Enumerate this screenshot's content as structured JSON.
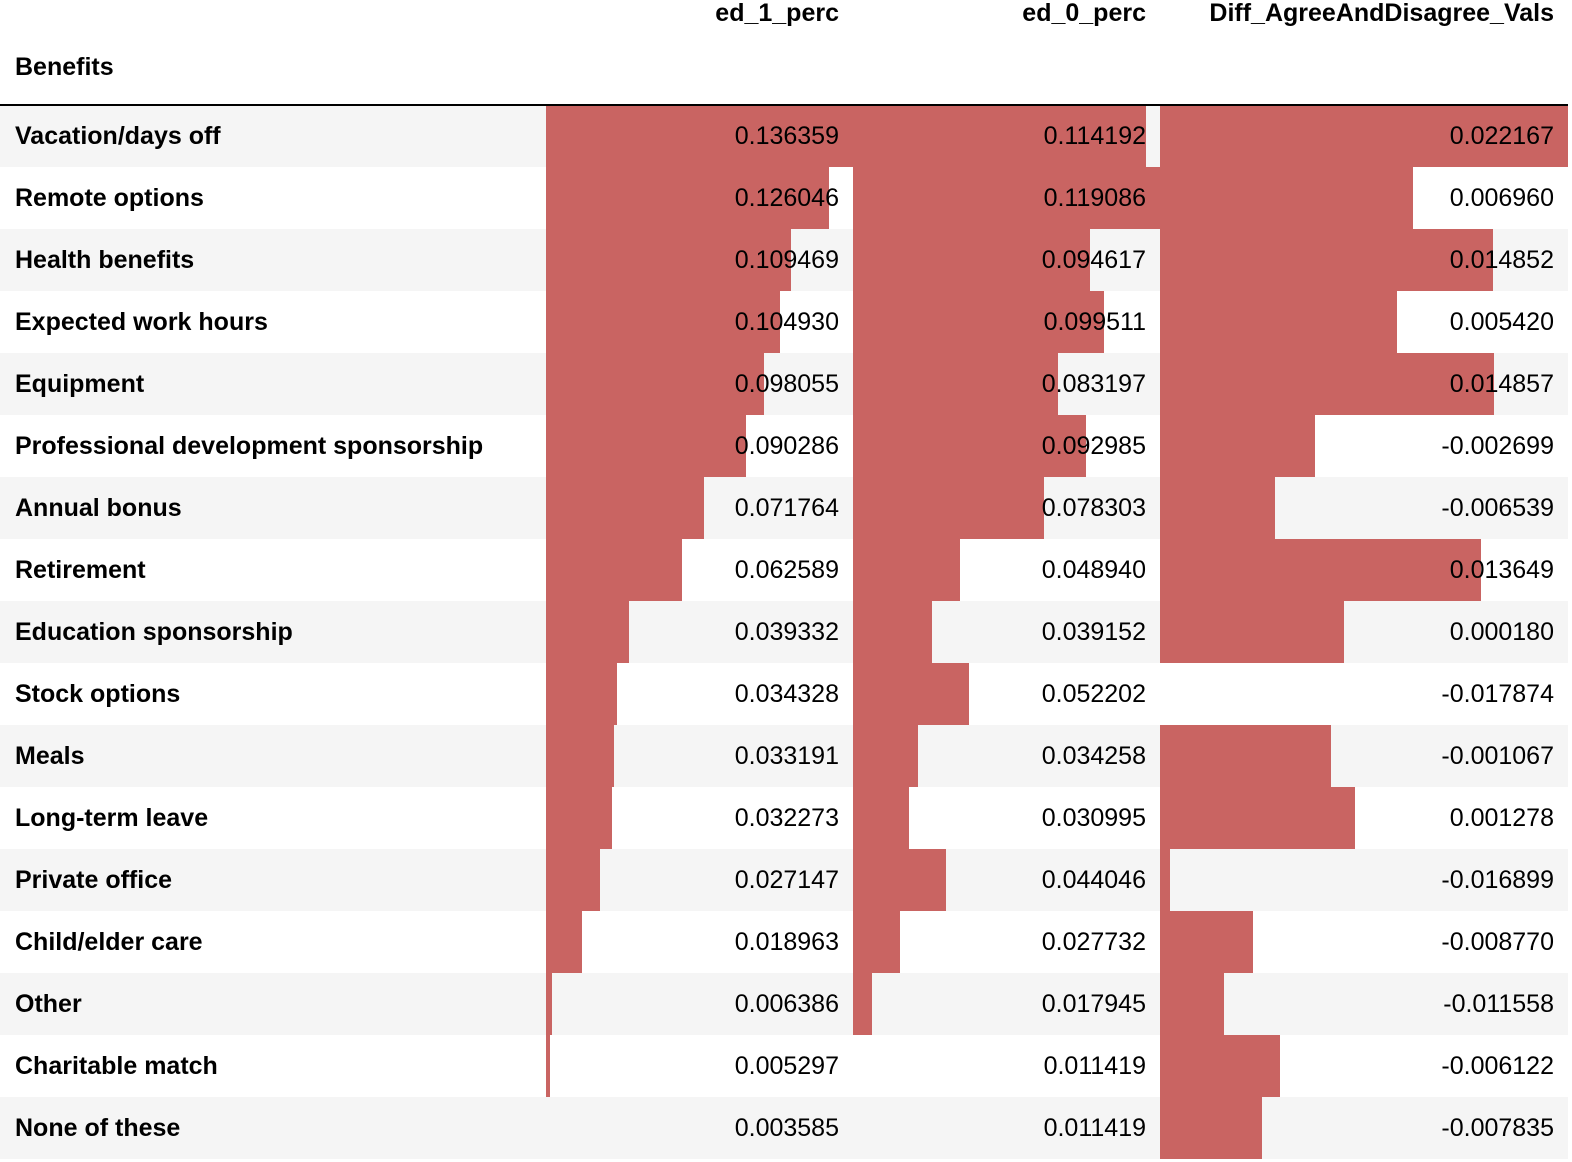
{
  "table": {
    "index_name": "Benefits",
    "columns": [
      "ed_1_perc",
      "ed_0_perc",
      "Diff_AgreeAndDisagree_Vals"
    ],
    "bar_color": "#c96462",
    "rows": [
      {
        "label": "Vacation/days off",
        "values": [
          "0.136359",
          "0.114192",
          "0.022167"
        ],
        "nums": [
          0.136359,
          0.114192,
          0.022167
        ]
      },
      {
        "label": "Remote options",
        "values": [
          "0.126046",
          "0.119086",
          "0.006960"
        ],
        "nums": [
          0.126046,
          0.119086,
          0.00696
        ]
      },
      {
        "label": "Health benefits",
        "values": [
          "0.109469",
          "0.094617",
          "0.014852"
        ],
        "nums": [
          0.109469,
          0.094617,
          0.014852
        ]
      },
      {
        "label": "Expected work hours",
        "values": [
          "0.104930",
          "0.099511",
          "0.005420"
        ],
        "nums": [
          0.10493,
          0.099511,
          0.00542
        ]
      },
      {
        "label": "Equipment",
        "values": [
          "0.098055",
          "0.083197",
          "0.014857"
        ],
        "nums": [
          0.098055,
          0.083197,
          0.014857
        ]
      },
      {
        "label": "Professional development sponsorship",
        "values": [
          "0.090286",
          "0.092985",
          "-0.002699"
        ],
        "nums": [
          0.090286,
          0.092985,
          -0.002699
        ]
      },
      {
        "label": "Annual bonus",
        "values": [
          "0.071764",
          "0.078303",
          "-0.006539"
        ],
        "nums": [
          0.071764,
          0.078303,
          -0.006539
        ]
      },
      {
        "label": "Retirement",
        "values": [
          "0.062589",
          "0.048940",
          "0.013649"
        ],
        "nums": [
          0.062589,
          0.04894,
          0.013649
        ]
      },
      {
        "label": "Education sponsorship",
        "values": [
          "0.039332",
          "0.039152",
          "0.000180"
        ],
        "nums": [
          0.039332,
          0.039152,
          0.00018
        ]
      },
      {
        "label": "Stock options",
        "values": [
          "0.034328",
          "0.052202",
          "-0.017874"
        ],
        "nums": [
          0.034328,
          0.052202,
          -0.017874
        ]
      },
      {
        "label": "Meals",
        "values": [
          "0.033191",
          "0.034258",
          "-0.001067"
        ],
        "nums": [
          0.033191,
          0.034258,
          -0.001067
        ]
      },
      {
        "label": "Long-term leave",
        "values": [
          "0.032273",
          "0.030995",
          "0.001278"
        ],
        "nums": [
          0.032273,
          0.030995,
          0.001278
        ]
      },
      {
        "label": "Private office",
        "values": [
          "0.027147",
          "0.044046",
          "-0.016899"
        ],
        "nums": [
          0.027147,
          0.044046,
          -0.016899
        ]
      },
      {
        "label": "Child/elder care",
        "values": [
          "0.018963",
          "0.027732",
          "-0.008770"
        ],
        "nums": [
          0.018963,
          0.027732,
          -0.00877
        ]
      },
      {
        "label": "Other",
        "values": [
          "0.006386",
          "0.017945",
          "-0.011558"
        ],
        "nums": [
          0.006386,
          0.017945,
          -0.011558
        ]
      },
      {
        "label": "Charitable match",
        "values": [
          "0.005297",
          "0.011419",
          "-0.006122"
        ],
        "nums": [
          0.005297,
          0.011419,
          -0.006122
        ]
      },
      {
        "label": "None of these",
        "values": [
          "0.003585",
          "0.011419",
          "-0.007835"
        ],
        "nums": [
          0.003585,
          0.011419,
          -0.007835
        ]
      }
    ]
  }
}
